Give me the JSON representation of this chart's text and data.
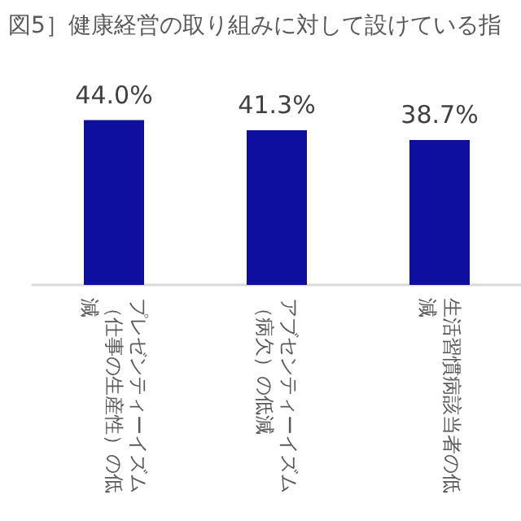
{
  "chart_data": {
    "type": "bar",
    "title": "図5］健康経営の取り組みに対して設けている指",
    "categories": [
      "プレゼンティーイズム（仕事の生産性）の低減",
      "アブセンティーイズム（病欠）の低減",
      "生活習慣病該当者の低減"
    ],
    "values": [
      44.0,
      41.3,
      38.7
    ],
    "color": "#0f0f9f",
    "data_labels": true,
    "value_labels": [
      "44.0%",
      "41.3%",
      "38.7%"
    ],
    "tick_labels": "x"
  }
}
